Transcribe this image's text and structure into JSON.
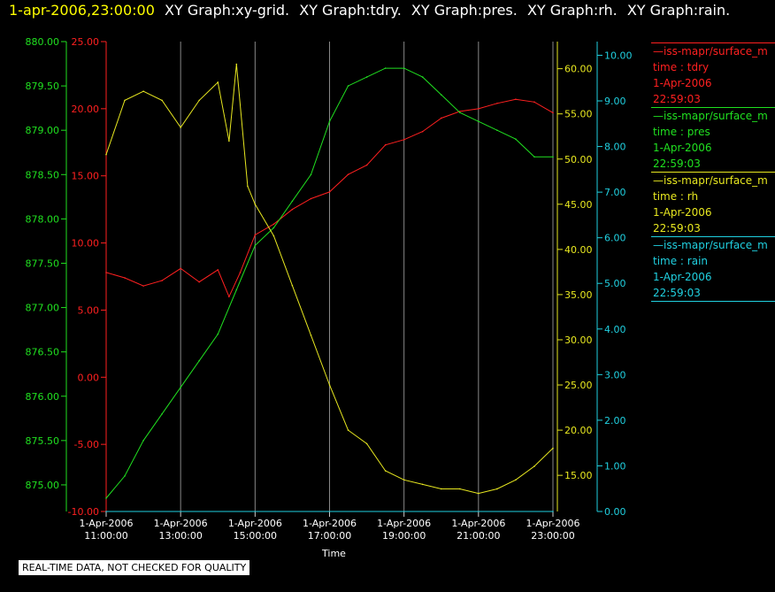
{
  "header": {
    "timestamp": "1-apr-2006,23:00:00",
    "graphs": [
      "XY Graph:xy-grid.",
      "XY Graph:tdry.",
      "XY Graph:pres.",
      "XY Graph:rh.",
      "XY Graph:rain."
    ],
    "timestamp_color": "#ffff00",
    "graphs_color": "#ffffff"
  },
  "legend": [
    {
      "line": "—iss-mapr/surface_m",
      "field": "time : tdry",
      "date": "1-Apr-2006",
      "time": "22:59:03",
      "color": "#ff2020"
    },
    {
      "line": "—iss-mapr/surface_m",
      "field": "time : pres",
      "date": "1-Apr-2006",
      "time": "22:59:03",
      "color": "#20e020"
    },
    {
      "line": "—iss-mapr/surface_m",
      "field": "time : rh",
      "date": "1-Apr-2006",
      "time": "22:59:03",
      "color": "#e8e820"
    },
    {
      "line": "—iss-mapr/surface_m",
      "field": "time : rain",
      "date": "1-Apr-2006",
      "time": "22:59:03",
      "color": "#20d0e0"
    }
  ],
  "footer_note": "REAL-TIME DATA, NOT CHECKED FOR QUALITY",
  "chart_data": {
    "type": "line",
    "xlabel": "Time",
    "x_ticks": [
      {
        "hour": 11,
        "date": "1-Apr-2006",
        "time": "11:00:00"
      },
      {
        "hour": 13,
        "date": "1-Apr-2006",
        "time": "13:00:00"
      },
      {
        "hour": 15,
        "date": "1-Apr-2006",
        "time": "15:00:00"
      },
      {
        "hour": 17,
        "date": "1-Apr-2006",
        "time": "17:00:00"
      },
      {
        "hour": 19,
        "date": "1-Apr-2006",
        "time": "19:00:00"
      },
      {
        "hour": 21,
        "date": "1-Apr-2006",
        "time": "21:00:00"
      },
      {
        "hour": 23,
        "date": "1-Apr-2006",
        "time": "23:00:00"
      }
    ],
    "xlim_hours": [
      11,
      23
    ],
    "grid": "vertical",
    "axes": {
      "pres": {
        "ylim": [
          874.7,
          880.0
        ],
        "ticks": [
          "875.00",
          "875.50",
          "876.00",
          "876.50",
          "877.00",
          "877.50",
          "878.00",
          "878.50",
          "879.00",
          "879.50",
          "880.00"
        ],
        "color": "#20e020"
      },
      "tdry": {
        "ylim": [
          -10,
          25
        ],
        "ticks": [
          "-10.00",
          "-5.00",
          "0.00",
          "5.00",
          "10.00",
          "15.00",
          "20.00",
          "25.00"
        ],
        "color": "#ff2020"
      },
      "rh": {
        "ylim": [
          11,
          63
        ],
        "ticks": [
          "15.00",
          "20.00",
          "25.00",
          "30.00",
          "35.00",
          "40.00",
          "45.00",
          "50.00",
          "55.00",
          "60.00"
        ],
        "color": "#e8e820"
      },
      "rain": {
        "ylim": [
          0,
          10.3
        ],
        "ticks": [
          "0.00",
          "1.00",
          "2.00",
          "3.00",
          "4.00",
          "5.00",
          "6.00",
          "7.00",
          "8.00",
          "9.00",
          "10.00"
        ],
        "color": "#20d0e0"
      }
    },
    "series": [
      {
        "name": "tdry",
        "axis": "tdry",
        "color": "#ff2020",
        "x": [
          11.0,
          11.5,
          12.0,
          12.5,
          13.0,
          13.5,
          14.0,
          14.3,
          14.6,
          15.0,
          15.5,
          16.0,
          16.5,
          17.0,
          17.5,
          18.0,
          18.5,
          19.0,
          19.5,
          20.0,
          20.5,
          21.0,
          21.5,
          22.0,
          22.5,
          23.0
        ],
        "y": [
          7.8,
          7.4,
          6.8,
          7.2,
          8.1,
          7.1,
          8.0,
          6.0,
          7.8,
          10.6,
          11.4,
          12.5,
          13.3,
          13.8,
          15.1,
          15.8,
          17.3,
          17.7,
          18.3,
          19.3,
          19.8,
          20.0,
          20.4,
          20.7,
          20.5,
          19.7
        ]
      },
      {
        "name": "pres",
        "axis": "pres",
        "color": "#20e020",
        "x": [
          11.0,
          11.5,
          12.0,
          12.5,
          13.0,
          13.5,
          14.0,
          14.5,
          15.0,
          15.5,
          16.0,
          16.5,
          17.0,
          17.5,
          18.0,
          18.5,
          19.0,
          19.5,
          20.0,
          20.5,
          21.0,
          21.5,
          22.0,
          22.5,
          23.0
        ],
        "y": [
          874.85,
          875.1,
          875.5,
          875.8,
          876.1,
          876.4,
          876.7,
          877.2,
          877.7,
          877.9,
          878.2,
          878.5,
          879.1,
          879.5,
          879.6,
          879.7,
          879.7,
          879.6,
          879.4,
          879.2,
          879.1,
          879.0,
          878.9,
          878.7,
          878.7
        ]
      },
      {
        "name": "rh",
        "axis": "rh",
        "color": "#e8e820",
        "x": [
          11.0,
          11.5,
          12.0,
          12.5,
          13.0,
          13.5,
          14.0,
          14.3,
          14.5,
          14.8,
          15.0,
          15.5,
          16.0,
          16.5,
          17.0,
          17.5,
          18.0,
          18.5,
          19.0,
          19.5,
          20.0,
          20.5,
          21.0,
          21.5,
          22.0,
          22.5,
          23.0
        ],
        "y": [
          50.5,
          56.5,
          57.5,
          56.5,
          53.5,
          56.5,
          58.5,
          52.0,
          60.5,
          47.0,
          45.0,
          41.5,
          36.0,
          30.5,
          25.0,
          20.0,
          18.5,
          15.5,
          14.5,
          14.0,
          13.5,
          13.5,
          13.0,
          13.5,
          14.5,
          16.0,
          18.0
        ]
      },
      {
        "name": "rain",
        "axis": "rain",
        "color": "#20d0e0",
        "x": [
          11.0,
          23.0
        ],
        "y": [
          0.0,
          0.0
        ]
      }
    ]
  }
}
